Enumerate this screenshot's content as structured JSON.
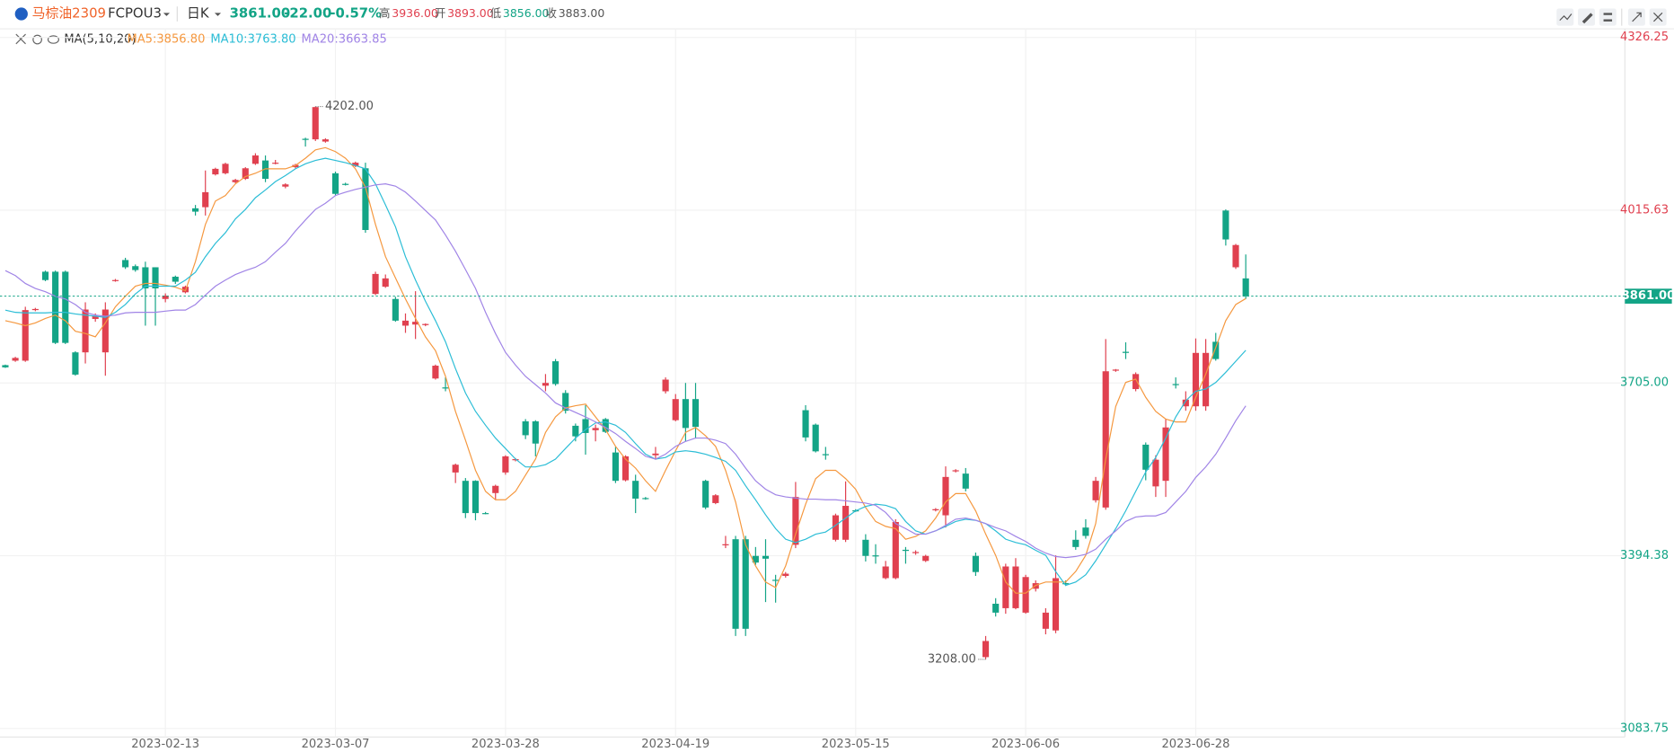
{
  "header": {
    "symbol_name": "马棕油2309",
    "symbol_code": "FCPOU3",
    "period": "日K",
    "last": "3861.00",
    "change": "-22.00",
    "change_pct": "-0.57%",
    "high_label": "高",
    "high": "3936.00",
    "open_label": "开",
    "open": "3893.00",
    "low_label": "低",
    "low": "3856.00",
    "close_label": "收",
    "close": "3883.00"
  },
  "chart_data": {
    "type": "candlestick",
    "indicator": "MA(5,10,20)",
    "categories": [
      null,
      null,
      null,
      null,
      null,
      null,
      null,
      null,
      null,
      null,
      null,
      null,
      null,
      null,
      null,
      null,
      "2023-02-13",
      null,
      null,
      null,
      null,
      null,
      null,
      null,
      null,
      null,
      null,
      null,
      null,
      null,
      null,
      null,
      null,
      "2023-03-07",
      null,
      null,
      null,
      null,
      null,
      null,
      null,
      null,
      null,
      null,
      null,
      null,
      null,
      null,
      null,
      null,
      "2023-03-28",
      null,
      null,
      null,
      null,
      null,
      null,
      null,
      null,
      null,
      null,
      null,
      null,
      null,
      null,
      null,
      null,
      "2023-04-19",
      null,
      null,
      null,
      null,
      null,
      null,
      null,
      null,
      null,
      null,
      null,
      null,
      null,
      null,
      null,
      null,
      null,
      "2023-05-15",
      null,
      null,
      null,
      null,
      null,
      null,
      null,
      null,
      null,
      null,
      null,
      null,
      null,
      null,
      null,
      null,
      "2023-06-06",
      null,
      null,
      null,
      null,
      null,
      null,
      null,
      null,
      null,
      null,
      null,
      null,
      null,
      null,
      null,
      null,
      "2023-06-28",
      null,
      null,
      null,
      null,
      null
    ],
    "open": [
      3737,
      3745,
      3745,
      3836,
      3905,
      3905,
      3905,
      3760,
      3760,
      3820,
      3760,
      3889,
      3926,
      3915,
      3913,
      3913,
      3856,
      3896,
      3868,
      4019,
      4021,
      4080,
      4082,
      4066,
      4072,
      4099,
      4105,
      4100,
      4058,
      4093,
      4144,
      4143,
      4139,
      4082,
      4063,
      4095,
      4091,
      3865,
      3878,
      3856,
      3808,
      3810,
      3809,
      3713,
      3697,
      3544,
      3529,
      3529,
      3471,
      3507,
      3544,
      3566,
      3636,
      3636,
      3700,
      3744,
      3687,
      3628,
      3640,
      3620,
      3640,
      3580,
      3530,
      3529,
      3498,
      3575,
      3690,
      3638,
      3676,
      3676,
      3529,
      3489,
      3413,
      3424,
      3424,
      3394,
      3394,
      3351,
      3358,
      3414,
      3656,
      3630,
      3577,
      3423,
      3423,
      3476,
      3423,
      3395,
      3354,
      3354,
      3405,
      3399,
      3385,
      3476,
      3467,
      3546,
      3542,
      3394,
      3212,
      3308,
      3300,
      3300,
      3292,
      3335,
      3263,
      3260,
      3345,
      3423,
      3445,
      3494,
      3481,
      3727,
      3761,
      3694,
      3594,
      3519,
      3529,
      3703,
      3663,
      3663,
      3663,
      3779,
      4015,
      3913,
      3893
    ],
    "high": [
      3738,
      3752,
      3842,
      3840,
      3907,
      3907,
      3907,
      3762,
      3850,
      3830,
      3850,
      3892,
      3930,
      3918,
      3923,
      3913,
      3866,
      3898,
      3880,
      4025,
      4087,
      4092,
      4101,
      4072,
      4093,
      4118,
      4114,
      4106,
      4064,
      4099,
      4146,
      4202,
      4145,
      4085,
      4065,
      4103,
      4101,
      3905,
      3900,
      3860,
      3830,
      3870,
      3812,
      3738,
      3715,
      3560,
      3534,
      3530,
      3473,
      3522,
      3575,
      3570,
      3640,
      3638,
      3721,
      3748,
      3692,
      3632,
      3665,
      3630,
      3642,
      3590,
      3575,
      3540,
      3500,
      3590,
      3715,
      3685,
      3705,
      3705,
      3531,
      3505,
      3430,
      3430,
      3430,
      3410,
      3424,
      3360,
      3365,
      3527,
      3665,
      3632,
      3590,
      3470,
      3528,
      3478,
      3433,
      3415,
      3385,
      3460,
      3410,
      3404,
      3396,
      3480,
      3555,
      3550,
      3552,
      3400,
      3250,
      3318,
      3380,
      3390,
      3360,
      3350,
      3300,
      3395,
      3350,
      3440,
      3460,
      3536,
      3784,
      3730,
      3778,
      3724,
      3598,
      3575,
      3640,
      3715,
      3690,
      3785,
      3784,
      3795,
      4017,
      3955,
      3936
    ],
    "low": [
      3732,
      3743,
      3743,
      3834,
      3888,
      3775,
      3775,
      3718,
      3740,
      3815,
      3718,
      3887,
      3910,
      3905,
      3808,
      3808,
      3850,
      3883,
      3866,
      4006,
      4006,
      4078,
      4080,
      4064,
      4070,
      4097,
      4066,
      4098,
      4055,
      4091,
      4130,
      4140,
      4137,
      4042,
      4060,
      4093,
      3975,
      3863,
      3876,
      3815,
      3795,
      3784,
      3807,
      3711,
      3690,
      3525,
      3462,
      3458,
      3469,
      3495,
      3540,
      3564,
      3604,
      3573,
      3690,
      3700,
      3650,
      3600,
      3576,
      3600,
      3615,
      3525,
      3528,
      3471,
      3495,
      3567,
      3686,
      3636,
      3600,
      3605,
      3478,
      3487,
      3408,
      3250,
      3250,
      3378,
      3311,
      3310,
      3355,
      3408,
      3600,
      3580,
      3567,
      3420,
      3419,
      3473,
      3384,
      3380,
      3352,
      3352,
      3380,
      3396,
      3383,
      3474,
      3445,
      3544,
      3510,
      3358,
      3208,
      3285,
      3290,
      3298,
      3290,
      3330,
      3253,
      3255,
      3340,
      3405,
      3425,
      3490,
      3477,
      3725,
      3748,
      3690,
      3530,
      3500,
      3500,
      3695,
      3655,
      3655,
      3655,
      3745,
      3952,
      3910,
      3856
    ],
    "close": [
      3733,
      3750,
      3836,
      3838,
      3890,
      3777,
      3777,
      3720,
      3837,
      3825,
      3837,
      3890,
      3913,
      3908,
      3875,
      3875,
      3862,
      3887,
      3878,
      4013,
      4048,
      4090,
      4099,
      4070,
      4091,
      4114,
      4072,
      4101,
      4062,
      4097,
      4142,
      4201,
      4143,
      4045,
      4061,
      4101,
      3980,
      3901,
      3893,
      3817,
      3817,
      3815,
      3811,
      3736,
      3695,
      3558,
      3471,
      3471,
      3470,
      3520,
      3573,
      3568,
      3611,
      3596,
      3705,
      3703,
      3655,
      3609,
      3615,
      3624,
      3617,
      3529,
      3573,
      3497,
      3497,
      3578,
      3711,
      3676,
      3624,
      3626,
      3481,
      3503,
      3415,
      3263,
      3263,
      3382,
      3389,
      3350,
      3362,
      3500,
      3607,
      3582,
      3575,
      3467,
      3484,
      3474,
      3394,
      3393,
      3375,
      3455,
      3403,
      3401,
      3394,
      3478,
      3536,
      3548,
      3515,
      3365,
      3241,
      3292,
      3375,
      3375,
      3356,
      3345,
      3292,
      3354,
      3343,
      3410,
      3430,
      3529,
      3726,
      3729,
      3759,
      3721,
      3549,
      3567,
      3625,
      3701,
      3675,
      3759,
      3759,
      3748,
      3963,
      3953,
      3861
    ],
    "up_color": "#e0404f",
    "down_color": "#13a486",
    "series": [
      {
        "name": "MA5:3856.80",
        "color": "#f5983f",
        "values": [
          3817,
          3813,
          3808,
          3813,
          3821,
          3827,
          3817,
          3798,
          3794,
          3788,
          3813,
          3842,
          3861,
          3879,
          3884,
          3884,
          3881,
          3877,
          3871,
          3923,
          3990,
          4032,
          4042,
          4063,
          4076,
          4082,
          4090,
          4090,
          4090,
          4096,
          4109,
          4124,
          4128,
          4121,
          4109,
          4090,
          4057,
          3990,
          3932,
          3894,
          3856,
          3821,
          3788,
          3763,
          3717,
          3654,
          3602,
          3548,
          3510,
          3495,
          3495,
          3510,
          3539,
          3568,
          3616,
          3644,
          3660,
          3664,
          3667,
          3644,
          3621,
          3591,
          3568,
          3552,
          3529,
          3510,
          3548,
          3583,
          3616,
          3625,
          3610,
          3591,
          3548,
          3491,
          3414,
          3376,
          3347,
          3337,
          3376,
          3433,
          3487,
          3533,
          3548,
          3548,
          3533,
          3514,
          3481,
          3456,
          3447,
          3443,
          3424,
          3429,
          3439,
          3462,
          3491,
          3506,
          3506,
          3475,
          3433,
          3395,
          3347,
          3327,
          3327,
          3341,
          3347,
          3347,
          3347,
          3366,
          3395,
          3452,
          3568,
          3663,
          3706,
          3712,
          3679,
          3654,
          3640,
          3635,
          3635,
          3679,
          3721,
          3769,
          3817,
          3846,
          3856.8
        ]
      },
      {
        "name": "MA10:3763.80",
        "color": "#2bbdd6",
        "values": [
          3836,
          3832,
          3831,
          3831,
          3831,
          3832,
          3832,
          3829,
          3827,
          3825,
          3823,
          3832,
          3846,
          3865,
          3879,
          3879,
          3879,
          3879,
          3890,
          3904,
          3932,
          3956,
          3975,
          4000,
          4017,
          4038,
          4052,
          4067,
          4078,
          4090,
          4099,
          4105,
          4109,
          4105,
          4101,
          4096,
          4090,
          4063,
          4025,
          3986,
          3932,
          3890,
          3852,
          3817,
          3779,
          3731,
          3687,
          3654,
          3629,
          3606,
          3587,
          3568,
          3554,
          3554,
          3558,
          3568,
          3587,
          3606,
          3621,
          3633,
          3635,
          3629,
          3616,
          3596,
          3577,
          3568,
          3571,
          3581,
          3583,
          3581,
          3577,
          3571,
          3564,
          3548,
          3520,
          3495,
          3468,
          3443,
          3424,
          3418,
          3424,
          3433,
          3437,
          3449,
          3462,
          3475,
          3483,
          3487,
          3485,
          3479,
          3456,
          3439,
          3433,
          3439,
          3447,
          3456,
          3460,
          3458,
          3452,
          3439,
          3424,
          3418,
          3414,
          3404,
          3395,
          3366,
          3341,
          3347,
          3360,
          3385,
          3414,
          3443,
          3475,
          3510,
          3545,
          3571,
          3606,
          3644,
          3673,
          3690,
          3694,
          3706,
          3724,
          3744,
          3763.8
        ]
      },
      {
        "name": "MA20:3663.85",
        "color": "#a084e6",
        "values": [
          3907,
          3898,
          3884,
          3875,
          3869,
          3861,
          3856,
          3846,
          3832,
          3827,
          3825,
          3827,
          3831,
          3832,
          3832,
          3832,
          3834,
          3836,
          3836,
          3846,
          3863,
          3879,
          3890,
          3900,
          3907,
          3913,
          3923,
          3940,
          3956,
          3978,
          3998,
          4017,
          4028,
          4042,
          4048,
          4053,
          4057,
          4061,
          4063,
          4059,
          4048,
          4032,
          4015,
          3998,
          3971,
          3942,
          3909,
          3875,
          3832,
          3794,
          3760,
          3737,
          3717,
          3702,
          3687,
          3669,
          3660,
          3652,
          3644,
          3635,
          3625,
          3614,
          3600,
          3587,
          3573,
          3568,
          3577,
          3591,
          3600,
          3606,
          3606,
          3602,
          3596,
          3577,
          3552,
          3529,
          3514,
          3504,
          3500,
          3498,
          3496,
          3496,
          3495,
          3495,
          3493,
          3491,
          3489,
          3485,
          3472,
          3452,
          3443,
          3433,
          3433,
          3439,
          3449,
          3460,
          3462,
          3458,
          3452,
          3445,
          3439,
          3429,
          3420,
          3408,
          3399,
          3393,
          3391,
          3393,
          3397,
          3406,
          3424,
          3439,
          3456,
          3464,
          3466,
          3466,
          3472,
          3491,
          3510,
          3535,
          3554,
          3577,
          3606,
          3637,
          3663.85
        ]
      }
    ],
    "ylim": [
      3083.75,
      4326.25
    ],
    "yticks": [
      4326.25,
      4015.63,
      {
        "value": 3705,
        "label": "3705.00"
      },
      3394.38,
      3083.75
    ],
    "grid": true,
    "price_line": {
      "value": 3861,
      "label": "3861.00"
    },
    "annotations": [
      {
        "value": 4202,
        "label": "4202.00"
      },
      {
        "value": 3208,
        "label": "3208.00"
      }
    ]
  }
}
